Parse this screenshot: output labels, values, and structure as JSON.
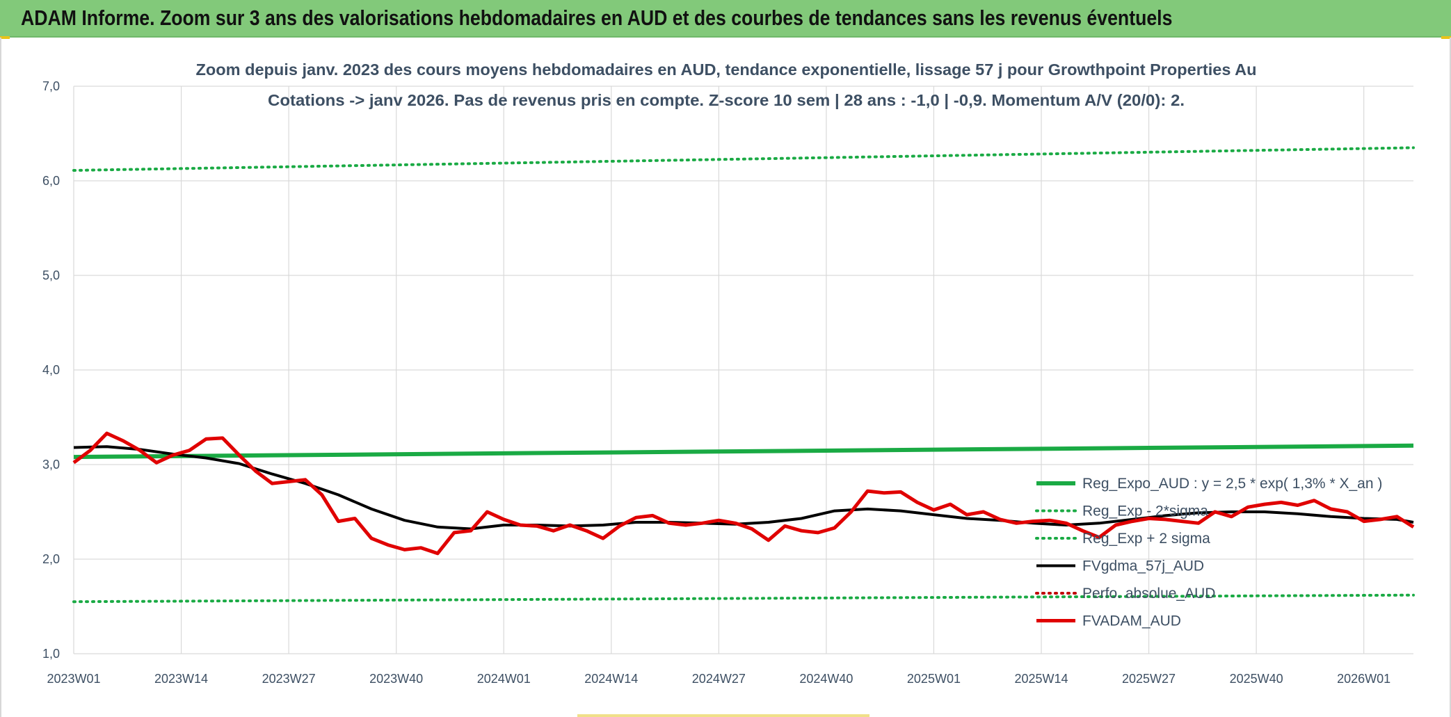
{
  "banner": {
    "title": "ADAM Informe. Zoom sur 3 ans des valorisations hebdomadaires en AUD et des courbes de tendances sans les revenus éventuels"
  },
  "colors": {
    "banner_bg": "#82c97a",
    "trend_green": "#1aaa44",
    "sigma_green": "#1aaa44",
    "smoothed_black": "#000000",
    "perf_red_dotted": "#c00000",
    "price_red": "#e00000",
    "grid": "#d9d9d9"
  },
  "chart_data": {
    "type": "line",
    "title": "Zoom depuis janv. 2023 des cours moyens hebdomadaires en AUD, tendance exponentielle, lissage 57 j pour Growthpoint Properties Au",
    "subtitle": "Cotations -> janv 2026. Pas de revenus pris en compte. Z-score 10 sem | 28 ans : -1,0 | -0,9. Momentum A/V (20/0): 2.",
    "xlabel": "",
    "ylabel": "",
    "x_ticks": [
      "2023W01",
      "2023W14",
      "2023W27",
      "2023W40",
      "2024W01",
      "2024W14",
      "2024W27",
      "2024W40",
      "2025W01",
      "2025W14",
      "2025W27",
      "2025W40",
      "2026W01"
    ],
    "y_ticks": [
      "7,0",
      "6,0",
      "5,0",
      "4,0",
      "3,0",
      "2,0",
      "1,0"
    ],
    "ylim": [
      1.0,
      7.0
    ],
    "x_unit": "week index from 2023W01 (0 = 2023W01, 52 = 2024W01, 104 = 2025W01, 156 = 2026W01)",
    "xlim": [
      0,
      162
    ],
    "grid": true,
    "legend_position": "bottom-right",
    "series": [
      {
        "name": "Reg_Expo_AUD : y = 2,5 * exp( 1,3% *  X_an )",
        "style": "solid-thick",
        "color": "#1aaa44",
        "x": [
          0,
          162
        ],
        "values": [
          3.08,
          3.2
        ]
      },
      {
        "name": "Reg_Exp - 2*sigma",
        "style": "dotted",
        "color": "#1aaa44",
        "x": [
          0,
          162
        ],
        "values": [
          1.55,
          1.62
        ]
      },
      {
        "name": "Reg_Exp + 2 sigma",
        "style": "dotted",
        "color": "#1aaa44",
        "x": [
          0,
          162
        ],
        "values": [
          6.11,
          6.35
        ]
      },
      {
        "name": "FVgdma_57j_AUD",
        "style": "solid",
        "color": "#000000",
        "x": [
          0,
          4,
          8,
          12,
          16,
          20,
          24,
          28,
          32,
          36,
          40,
          44,
          48,
          52,
          56,
          60,
          64,
          68,
          72,
          76,
          80,
          84,
          88,
          92,
          96,
          100,
          104,
          108,
          112,
          116,
          120,
          124,
          128,
          132,
          136,
          140,
          144,
          148,
          152,
          156,
          160,
          162
        ],
        "values": [
          3.18,
          3.19,
          3.16,
          3.11,
          3.07,
          3.01,
          2.9,
          2.8,
          2.68,
          2.53,
          2.41,
          2.34,
          2.32,
          2.36,
          2.36,
          2.35,
          2.36,
          2.39,
          2.39,
          2.38,
          2.37,
          2.39,
          2.43,
          2.51,
          2.53,
          2.51,
          2.47,
          2.43,
          2.41,
          2.38,
          2.36,
          2.38,
          2.42,
          2.46,
          2.49,
          2.5,
          2.5,
          2.48,
          2.45,
          2.43,
          2.42,
          2.39
        ]
      },
      {
        "name": "Perfo. absolue_AUD",
        "style": "dotted",
        "color": "#c00000",
        "x": [],
        "values": []
      },
      {
        "name": "FVADAM_AUD",
        "style": "solid-thick",
        "color": "#e00000",
        "x": [
          0,
          2,
          4,
          6,
          8,
          10,
          12,
          14,
          16,
          18,
          20,
          22,
          24,
          26,
          28,
          30,
          32,
          34,
          36,
          38,
          40,
          42,
          44,
          46,
          48,
          50,
          52,
          54,
          56,
          58,
          60,
          62,
          64,
          66,
          68,
          70,
          72,
          74,
          76,
          78,
          80,
          82,
          84,
          86,
          88,
          90,
          92,
          94,
          96,
          98,
          100,
          102,
          104,
          106,
          108,
          110,
          112,
          114,
          116,
          118,
          120,
          122,
          124,
          126,
          128,
          130,
          132,
          134,
          136,
          138,
          140,
          142,
          144,
          146,
          148,
          150,
          152,
          154,
          156,
          158,
          160,
          162
        ],
        "values": [
          3.02,
          3.15,
          3.33,
          3.25,
          3.15,
          3.02,
          3.1,
          3.15,
          3.27,
          3.28,
          3.1,
          2.93,
          2.8,
          2.82,
          2.84,
          2.68,
          2.4,
          2.43,
          2.22,
          2.15,
          2.1,
          2.12,
          2.06,
          2.28,
          2.3,
          2.5,
          2.42,
          2.36,
          2.35,
          2.3,
          2.36,
          2.3,
          2.22,
          2.35,
          2.44,
          2.46,
          2.38,
          2.36,
          2.38,
          2.41,
          2.38,
          2.32,
          2.2,
          2.35,
          2.3,
          2.28,
          2.33,
          2.5,
          2.72,
          2.7,
          2.71,
          2.6,
          2.52,
          2.58,
          2.47,
          2.5,
          2.42,
          2.38,
          2.4,
          2.41,
          2.38,
          2.3,
          2.23,
          2.36,
          2.4,
          2.43,
          2.42,
          2.4,
          2.38,
          2.5,
          2.45,
          2.55,
          2.58,
          2.6,
          2.57,
          2.62,
          2.53,
          2.5,
          2.4,
          2.42,
          2.45,
          2.34
        ]
      }
    ]
  }
}
